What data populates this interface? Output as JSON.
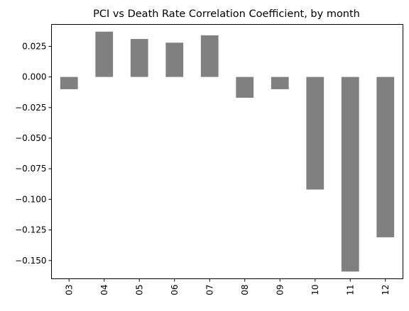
{
  "chart_data": {
    "type": "bar",
    "title": "PCI vs Death Rate Correlation Coefficient, by month",
    "xlabel": "",
    "ylabel": "",
    "categories": [
      "03",
      "04",
      "05",
      "06",
      "07",
      "08",
      "09",
      "10",
      "11",
      "12"
    ],
    "values": [
      -0.01,
      0.037,
      0.031,
      0.028,
      0.034,
      -0.017,
      -0.01,
      -0.092,
      -0.159,
      -0.131
    ],
    "ylim": [
      -0.1649,
      0.0429
    ],
    "yticks": [
      0.025,
      0.0,
      -0.025,
      -0.05,
      -0.075,
      -0.1,
      -0.125,
      -0.15
    ],
    "ytick_labels": [
      "0.025",
      "0.000",
      "−0.025",
      "−0.050",
      "−0.075",
      "−0.100",
      "−0.125",
      "−0.150"
    ],
    "bar_color": "#808080",
    "grid": false,
    "legend": false
  }
}
